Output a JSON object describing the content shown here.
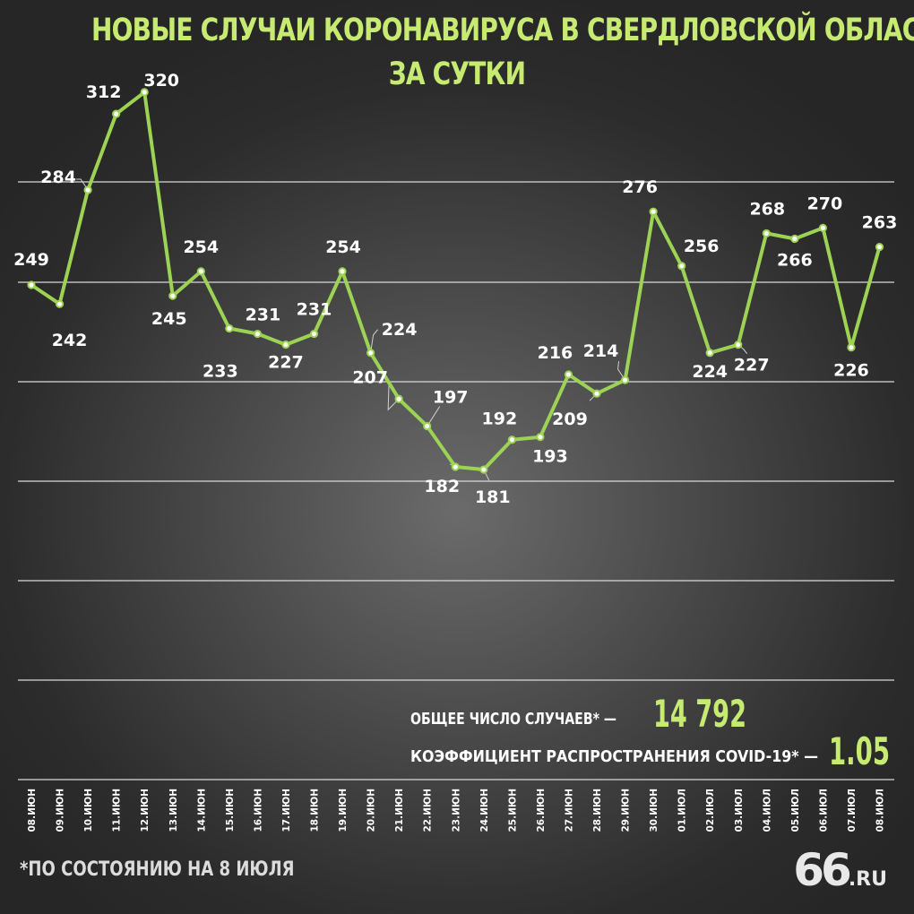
{
  "title_line1": "НОВЫЕ СЛУЧАИ КОРОНАВИРУСА В СВЕРДЛОВСКОЙ ОБЛАСТИ",
  "title_line2": "ЗА СУТКИ",
  "stats": {
    "total_label": "ОБЩЕЕ ЧИСЛО СЛУЧАЕВ* —",
    "total_value": "14 792",
    "rate_label": "КОЭФФИЦИЕНТ РАСПРОСТРАНЕНИЯ COVID-19* —",
    "rate_value": "1.05"
  },
  "footnote": "*ПО СОСТОЯНИЮ НА 8 ИЮЛЯ",
  "logo": {
    "number": "66",
    "domain": ".RU"
  },
  "colors": {
    "accent": "#c6ea72",
    "line": "#9dd354"
  },
  "chart_data": {
    "type": "line",
    "title": "НОВЫЕ СЛУЧАИ КОРОНАВИРУСА В СВЕРДЛОВСКОЙ ОБЛАСТИ ЗА СУТКИ",
    "xlabel": "",
    "ylabel": "",
    "grid": true,
    "categories": [
      "08.ИЮН",
      "09.ИЮН",
      "10.ИЮН",
      "11.ИЮН",
      "12.ИЮН",
      "13.ИЮН",
      "14.ИЮН",
      "15.ИЮН",
      "16.ИЮН",
      "17.ИЮН",
      "18.ИЮН",
      "19.ИЮН",
      "20.ИЮН",
      "21.ИЮН",
      "22.ИЮН",
      "23.ИЮН",
      "24.ИЮН",
      "25.ИЮН",
      "26.ИЮН",
      "27.ИЮН",
      "28.ИЮН",
      "29.ИЮН",
      "30.ИЮН",
      "01.ИЮЛ",
      "02.ИЮЛ",
      "03.ИЮЛ",
      "04.ИЮЛ",
      "05.ИЮЛ",
      "06.ИЮЛ",
      "07.ИЮЛ",
      "08.ИЮЛ"
    ],
    "values": [
      249,
      242,
      284,
      312,
      320,
      245,
      254,
      233,
      231,
      227,
      231,
      254,
      224,
      207,
      197,
      182,
      181,
      192,
      193,
      216,
      209,
      214,
      276,
      256,
      224,
      227,
      268,
      266,
      270,
      226,
      263
    ]
  }
}
